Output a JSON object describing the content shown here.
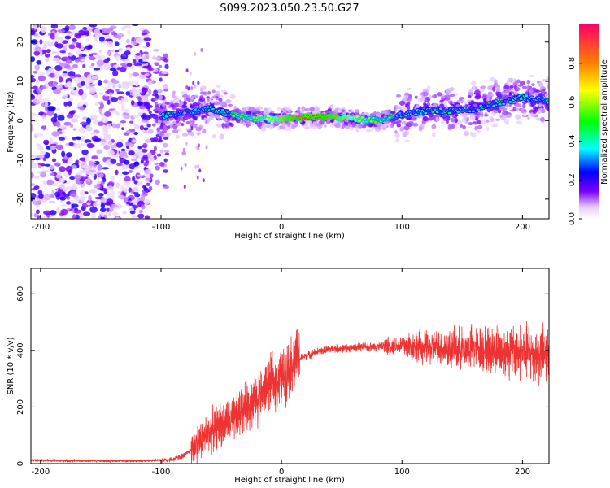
{
  "title": "S099.2023.050.23.50.G27",
  "chart_data": [
    {
      "type": "heatmap",
      "xlabel": "Height of straight line (km)",
      "ylabel": "Frequency (Hz)",
      "xlim": [
        -208,
        222
      ],
      "ylim": [
        -25,
        24.5
      ],
      "x_ticks": [
        -200,
        -100,
        0,
        100,
        200
      ],
      "y_ticks": [
        -20,
        -10,
        0,
        10,
        20
      ],
      "colorbar": {
        "label": "Normalized spectral amplitude",
        "range": [
          0,
          1
        ],
        "ticks": [
          0.0,
          0.2,
          0.4,
          0.6,
          0.8
        ],
        "colormap": [
          "#ffffff",
          "#7f00ff",
          "#0000ff",
          "#00ffff",
          "#00ff00",
          "#ffff00",
          "#ff8000",
          "#ff0066"
        ]
      },
      "ridge": {
        "description_points": [
          [
            -100,
            1
          ],
          [
            -80,
            2
          ],
          [
            -60,
            3
          ],
          [
            -40,
            1.5
          ],
          [
            -20,
            0.5
          ],
          [
            0,
            0.6
          ],
          [
            20,
            0.8
          ],
          [
            40,
            1.0
          ],
          [
            60,
            0.5
          ],
          [
            80,
            0
          ],
          [
            100,
            1.5
          ],
          [
            120,
            2.5
          ],
          [
            140,
            2.5
          ],
          [
            160,
            3
          ],
          [
            180,
            4.5
          ],
          [
            200,
            6
          ],
          [
            220,
            5
          ]
        ],
        "peak_amplitude_range": [
          10,
          40
        ]
      },
      "grid": false
    },
    {
      "type": "line",
      "xlabel": "Height of straight line (km)",
      "ylabel": "SNR (10 * v/v)",
      "xlim": [
        -208,
        222
      ],
      "ylim": [
        0,
        690
      ],
      "x_ticks": [
        -200,
        -100,
        0,
        100,
        200
      ],
      "y_ticks": [
        0,
        200,
        400,
        600
      ],
      "color": "#ee3333",
      "series": [
        {
          "x": [
            -208,
            -180,
            -160,
            -140,
            -120,
            -100,
            -90,
            -80,
            -70,
            -60,
            -50,
            -40,
            -30,
            -20,
            -10,
            0,
            10,
            20,
            30,
            40,
            60,
            80,
            100,
            120,
            140,
            160,
            180,
            200,
            222
          ],
          "values": [
            12,
            10,
            10,
            10,
            10,
            12,
            15,
            30,
            70,
            110,
            140,
            150,
            200,
            230,
            280,
            300,
            360,
            380,
            395,
            405,
            410,
            415,
            420,
            410,
            405,
            410,
            400,
            395,
            380
          ]
        }
      ],
      "grid": false
    }
  ]
}
